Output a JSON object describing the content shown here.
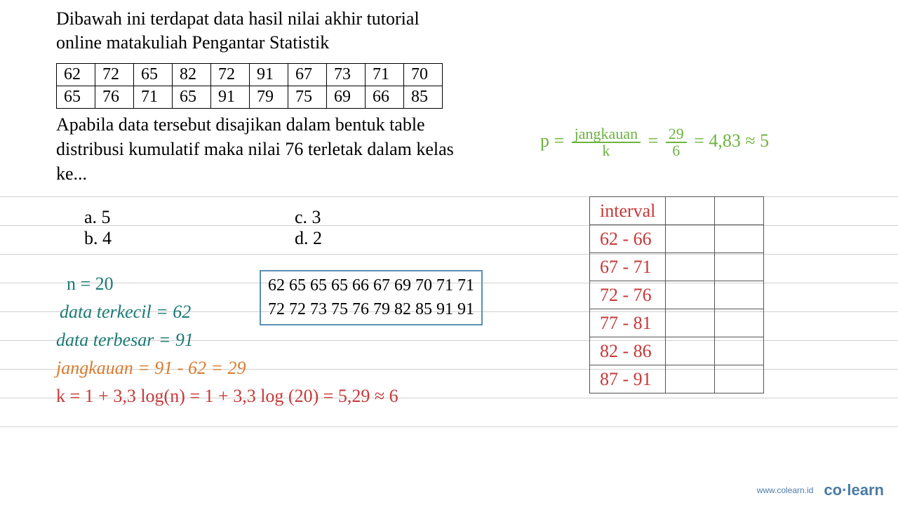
{
  "question": {
    "intro": "Dibawah ini terdapat data hasil nilai akhir tutorial online matakuliah Pengantar Statistik",
    "dataRow1": [
      "62",
      "72",
      "65",
      "82",
      "72",
      "91",
      "67",
      "73",
      "71",
      "70"
    ],
    "dataRow2": [
      "65",
      "76",
      "71",
      "65",
      "91",
      "79",
      "75",
      "69",
      "66",
      "85"
    ],
    "prompt": "Apabila data tersebut disajikan dalam bentuk table distribusi kumulatif maka nilai 76 terletak dalam kelas ke...",
    "options": {
      "a": "a.  5",
      "b": "b.  4",
      "c": "c.  3",
      "d": "d.  2"
    }
  },
  "sorted": {
    "line1": "62 65 65 65 66 67 69 70 71 71",
    "line2": "72 72 73 75 76 79 82 85 91 91"
  },
  "work": {
    "n": "n = 20",
    "terkecil": "data terkecil = 62",
    "terbesar": "data terbesar = 91",
    "jangkauan": "jangkauan = 91 - 62 = 29",
    "k": "k = 1 + 3,3 log(n) = 1 + 3,3 log (20) = 5,29 ≈ 6",
    "p_prefix": "p = ",
    "p_frac1_top": "jangkauan",
    "p_frac1_bot": "k",
    "p_eq1": " = ",
    "p_frac2_top": "29",
    "p_frac2_bot": "6",
    "p_result": " = 4,83 ≈ 5"
  },
  "intervalTable": {
    "header": "interval",
    "rows": [
      "62 - 66",
      "67 - 71",
      "72 - 76",
      "77 - 81",
      "82 - 86",
      "87 - 91"
    ]
  },
  "footer": {
    "url": "www.colearn.id",
    "logo": "co·learn"
  }
}
